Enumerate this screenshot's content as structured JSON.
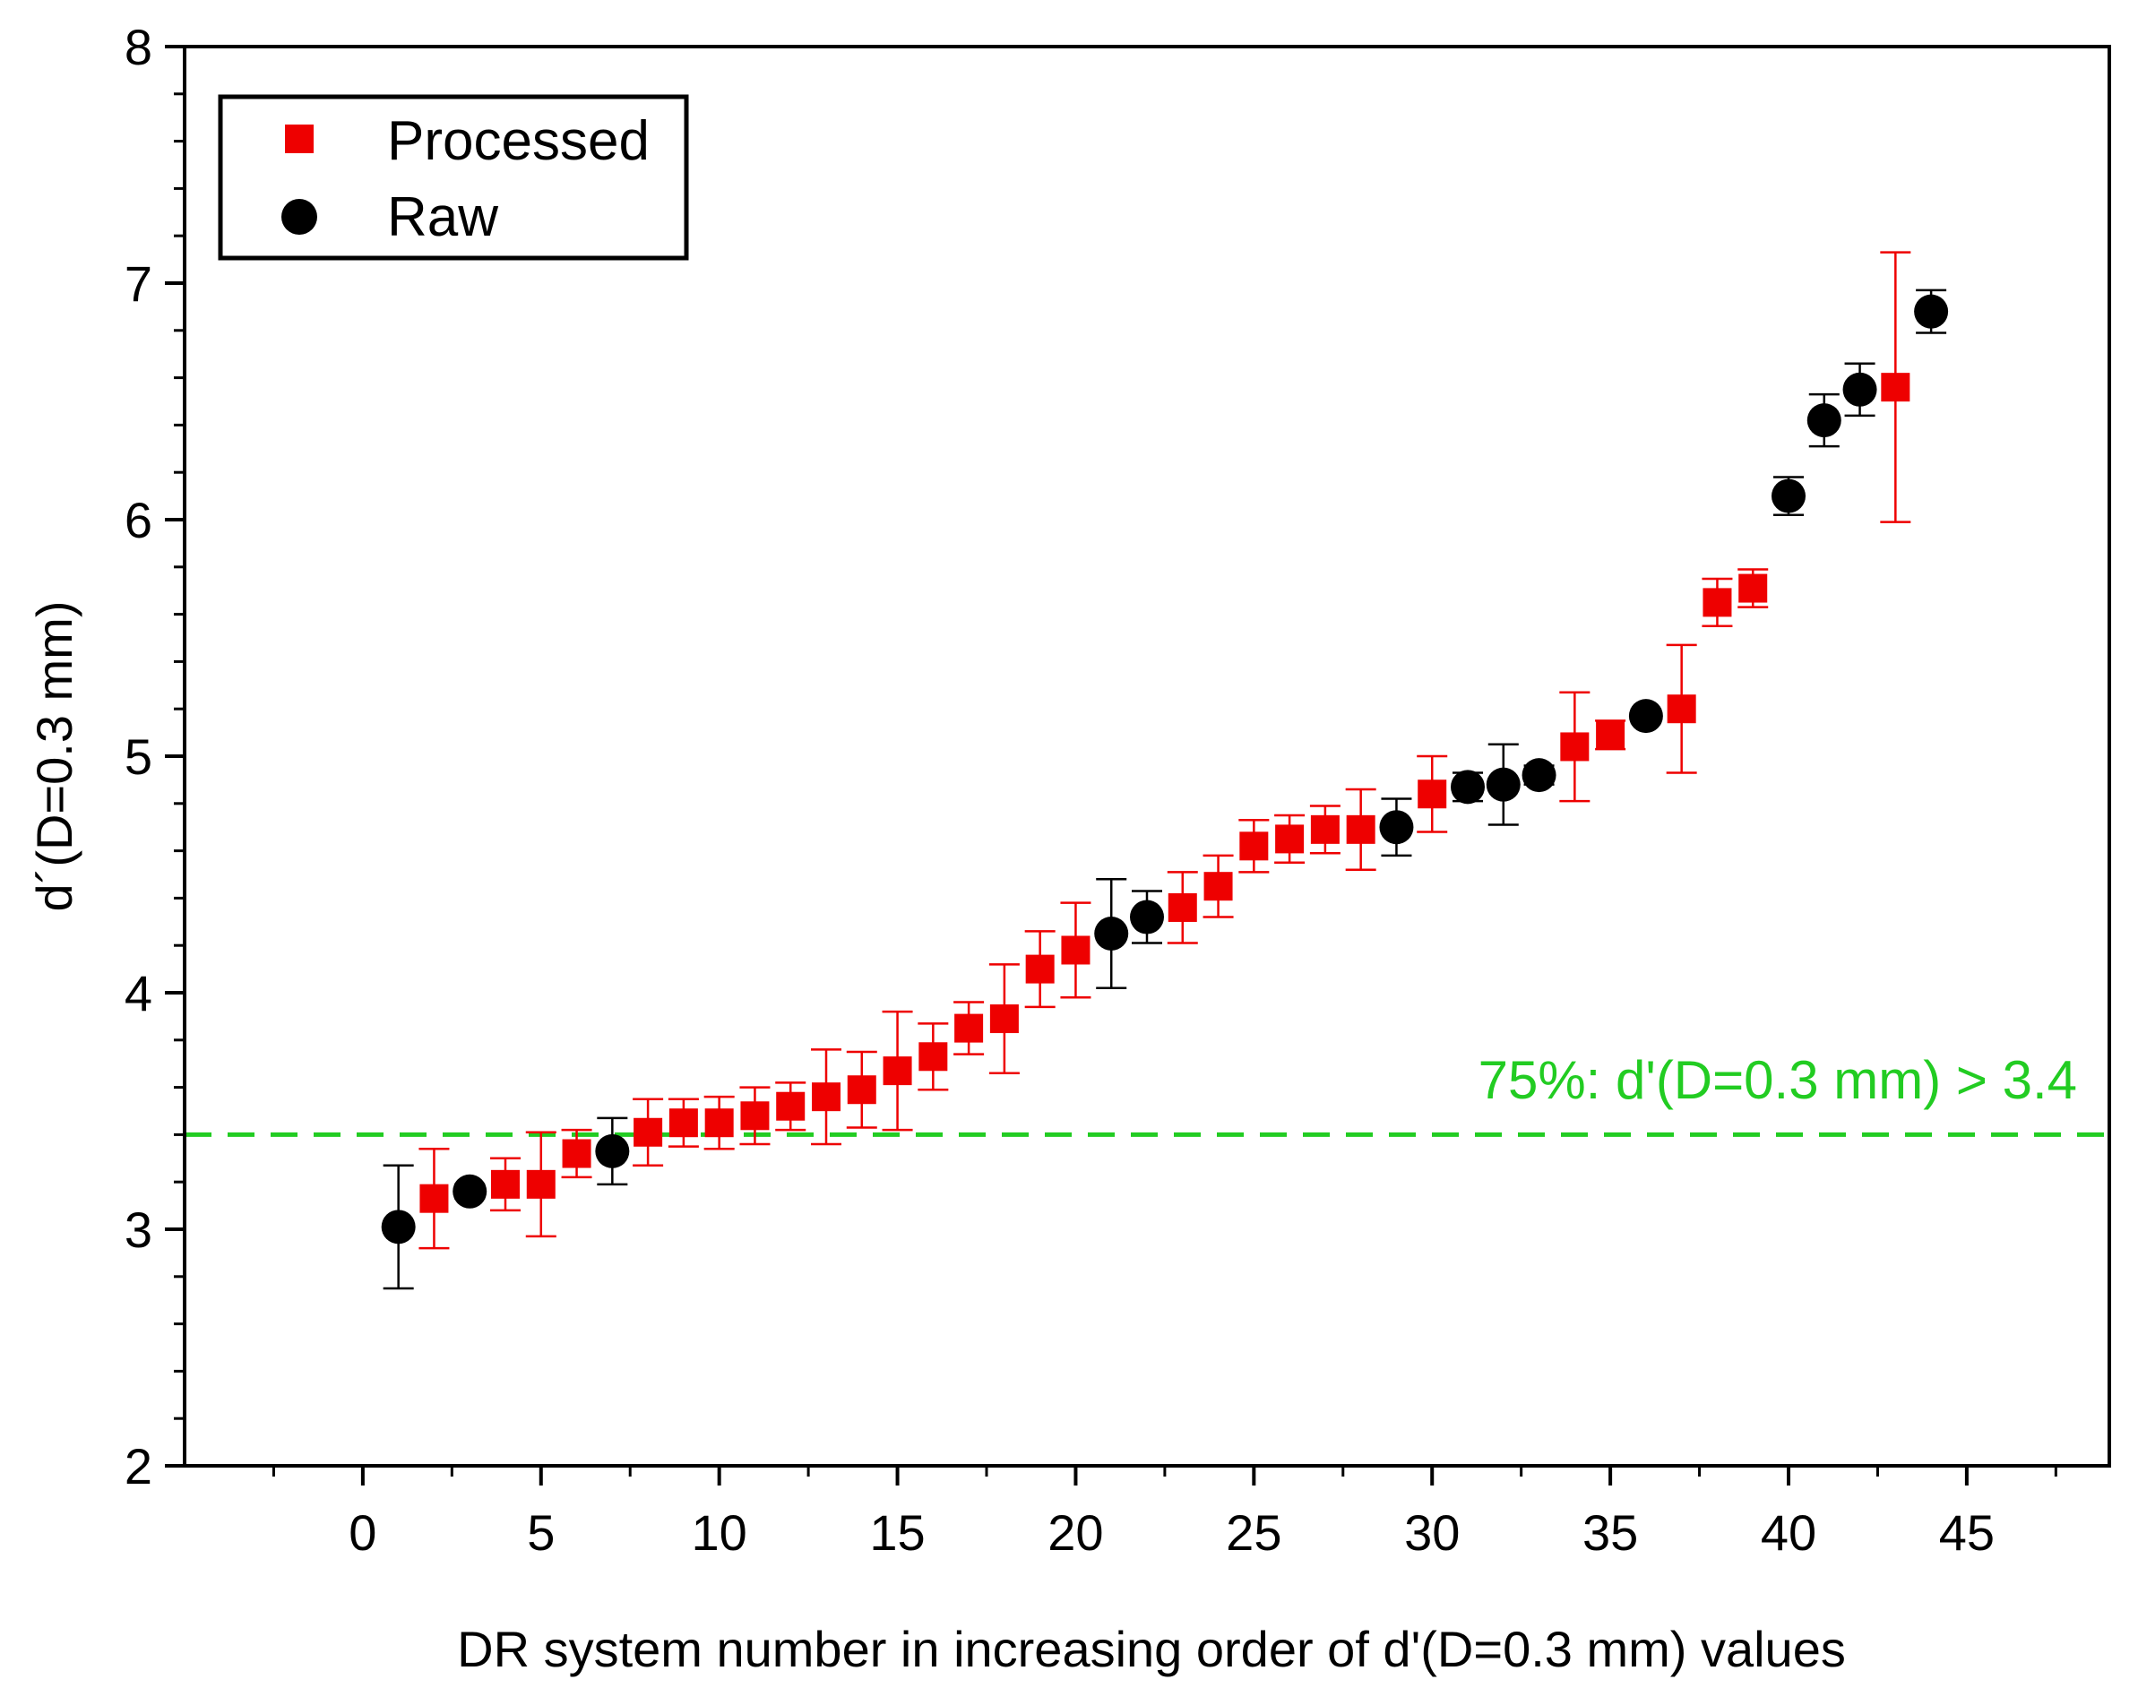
{
  "chart_data": {
    "type": "scatter",
    "title": "",
    "xlabel": "DR system number in increasing order of d'(D=0.3 mm) values",
    "ylabel": "d´(D=0.3 mm)",
    "xlim": [
      -5,
      49
    ],
    "ylim": [
      2,
      8
    ],
    "xticks": [
      0,
      5,
      10,
      15,
      20,
      25,
      30,
      35,
      40,
      45
    ],
    "yticks": [
      2,
      3,
      4,
      5,
      6,
      7,
      8
    ],
    "x_minor_step": 2.5,
    "y_minor_step": 0.2,
    "grid": false,
    "legend_position": "top-left",
    "threshold": {
      "value": 3.4,
      "label": "75%: d'(D=0.3 mm) > 3.4",
      "color": "#22cc22"
    },
    "series": [
      {
        "name": "Processed",
        "marker": "square",
        "color": "#ee0000",
        "errorbar_color": "#ee0000",
        "points": [
          {
            "x": 2,
            "y": 3.13,
            "err": 0.21
          },
          {
            "x": 4,
            "y": 3.19,
            "err": 0.11
          },
          {
            "x": 5,
            "y": 3.19,
            "err": 0.22
          },
          {
            "x": 6,
            "y": 3.32,
            "err": 0.1
          },
          {
            "x": 8,
            "y": 3.41,
            "err": 0.14
          },
          {
            "x": 9,
            "y": 3.45,
            "err": 0.1
          },
          {
            "x": 10,
            "y": 3.45,
            "err": 0.11
          },
          {
            "x": 11,
            "y": 3.48,
            "err": 0.12
          },
          {
            "x": 12,
            "y": 3.52,
            "err": 0.1
          },
          {
            "x": 13,
            "y": 3.56,
            "err": 0.2
          },
          {
            "x": 14,
            "y": 3.59,
            "err": 0.16
          },
          {
            "x": 15,
            "y": 3.67,
            "err": 0.25
          },
          {
            "x": 16,
            "y": 3.73,
            "err": 0.14
          },
          {
            "x": 17,
            "y": 3.85,
            "err": 0.11
          },
          {
            "x": 18,
            "y": 3.89,
            "err": 0.23
          },
          {
            "x": 19,
            "y": 4.1,
            "err": 0.16
          },
          {
            "x": 20,
            "y": 4.18,
            "err": 0.2
          },
          {
            "x": 23,
            "y": 4.36,
            "err": 0.15
          },
          {
            "x": 24,
            "y": 4.45,
            "err": 0.13
          },
          {
            "x": 25,
            "y": 4.62,
            "err": 0.11
          },
          {
            "x": 26,
            "y": 4.65,
            "err": 0.1
          },
          {
            "x": 27,
            "y": 4.69,
            "err": 0.1
          },
          {
            "x": 28,
            "y": 4.69,
            "err": 0.17
          },
          {
            "x": 30,
            "y": 4.84,
            "err": 0.16
          },
          {
            "x": 34,
            "y": 5.04,
            "err": 0.23
          },
          {
            "x": 35,
            "y": 5.09,
            "err": 0.06
          },
          {
            "x": 37,
            "y": 5.2,
            "err": 0.27
          },
          {
            "x": 38,
            "y": 5.65,
            "err": 0.1
          },
          {
            "x": 39,
            "y": 5.71,
            "err": 0.08
          },
          {
            "x": 43,
            "y": 6.56,
            "err": 0.57
          }
        ]
      },
      {
        "name": "Raw",
        "marker": "circle",
        "color": "#000000",
        "errorbar_color": "#000000",
        "points": [
          {
            "x": 1,
            "y": 3.01,
            "err": 0.26
          },
          {
            "x": 3,
            "y": 3.16,
            "err": 0.03
          },
          {
            "x": 7,
            "y": 3.33,
            "err": 0.14
          },
          {
            "x": 21,
            "y": 4.25,
            "err": 0.23
          },
          {
            "x": 22,
            "y": 4.32,
            "err": 0.11
          },
          {
            "x": 29,
            "y": 4.7,
            "err": 0.12
          },
          {
            "x": 31,
            "y": 4.87,
            "err": 0.06
          },
          {
            "x": 32,
            "y": 4.88,
            "err": 0.17
          },
          {
            "x": 33,
            "y": 4.92,
            "err": 0.04
          },
          {
            "x": 36,
            "y": 5.17,
            "err": 0.03
          },
          {
            "x": 40,
            "y": 6.1,
            "err": 0.08
          },
          {
            "x": 41,
            "y": 6.42,
            "err": 0.11
          },
          {
            "x": 42,
            "y": 6.55,
            "err": 0.11
          },
          {
            "x": 44,
            "y": 6.88,
            "err": 0.09
          }
        ]
      }
    ]
  }
}
